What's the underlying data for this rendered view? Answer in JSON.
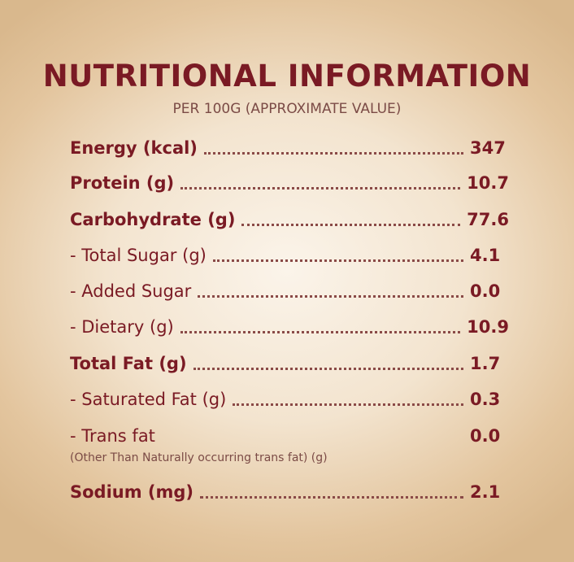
{
  "title": "NUTRITIONAL INFORMATION",
  "subtitle": "PER 100G (APPROXIMATE VALUE)",
  "rows": [
    {
      "label": "Energy (kcal)",
      "value": "347"
    },
    {
      "label": "Protein (g)",
      "value": "10.7"
    },
    {
      "label": "Carbohydrate (g)",
      "value": "77.6"
    },
    {
      "label": "- Total Sugar (g)",
      "value": "4.1"
    },
    {
      "label": "- Added Sugar",
      "value": "0.0"
    },
    {
      "label": "- Dietary (g)",
      "value": "10.9"
    },
    {
      "label": "Total Fat (g)",
      "value": "1.7"
    },
    {
      "label": "- Saturated Fat (g)",
      "value": "0.3"
    },
    {
      "label": "- Trans fat",
      "value": "0.0"
    },
    {
      "label": "Sodium (mg)",
      "value": "2.1"
    }
  ],
  "trans_fat_note": "(Other Than Naturally occurring trans fat) (g)"
}
